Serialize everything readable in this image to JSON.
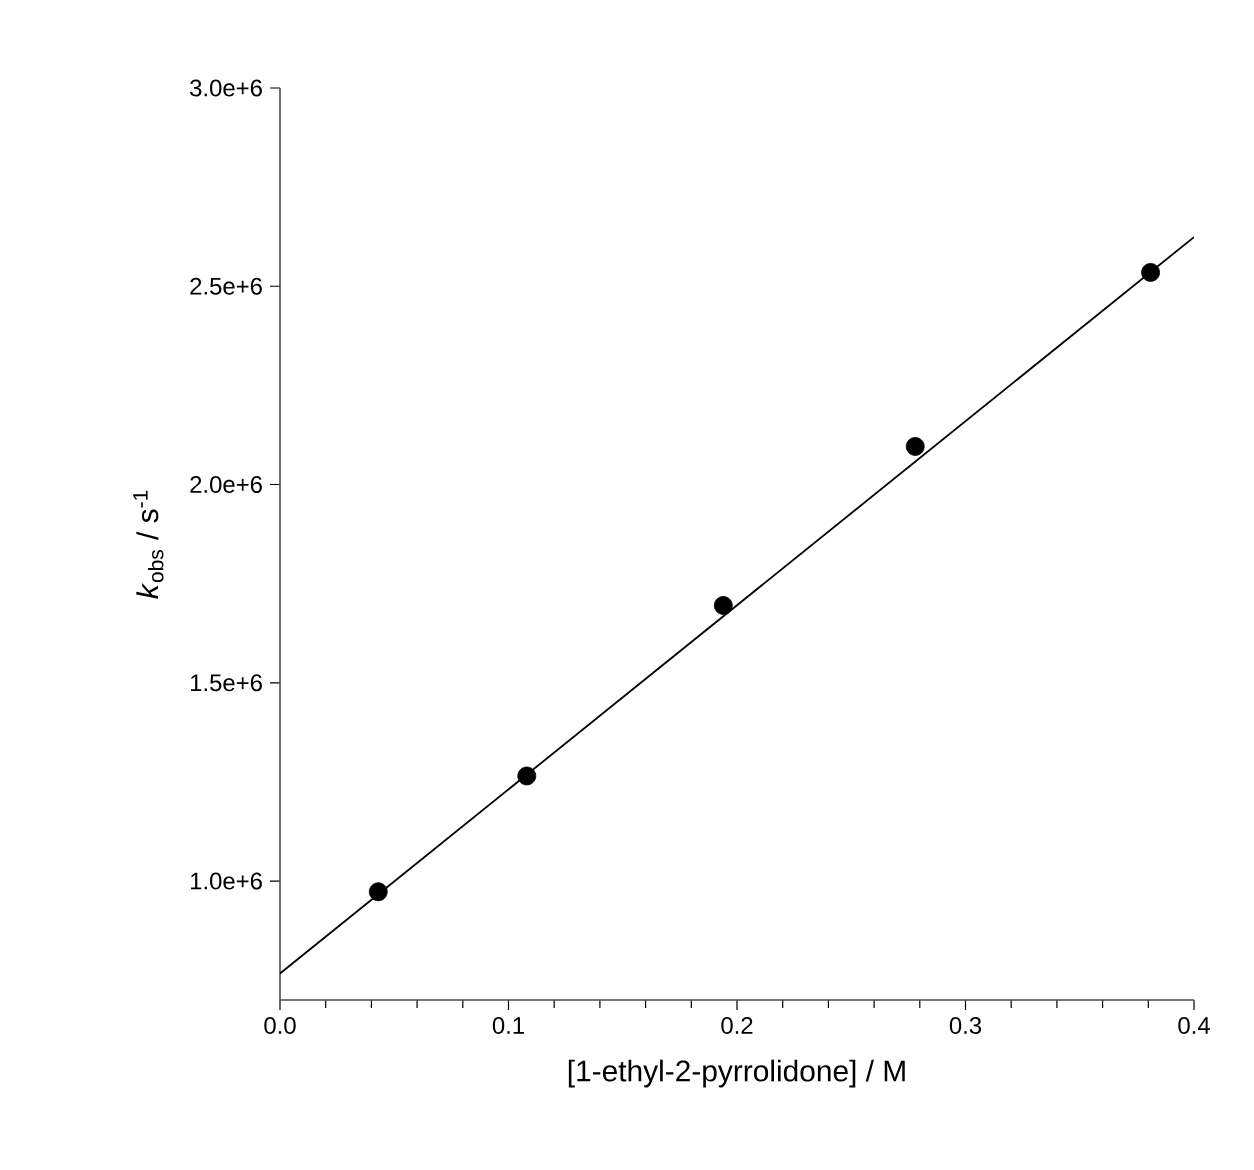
{
  "chart_data": {
    "type": "scatter",
    "xlabel": "[1-ethyl-2-pyrrolidone] / M",
    "ylabel": "*k*$_{obs}$ / s$^{-1}$",
    "xlim": [
      0,
      0.4
    ],
    "ylim": [
      700000,
      3000000
    ],
    "xticks": [
      {
        "value": 0,
        "label": "0.0"
      },
      {
        "value": 0.1,
        "label": "0.1"
      },
      {
        "value": 0.2,
        "label": "0.2"
      },
      {
        "value": 0.3,
        "label": "0.3"
      },
      {
        "value": 0.4,
        "label": "0.4"
      }
    ],
    "yticks": [
      {
        "value": 1000000,
        "label": "1.0e+6"
      },
      {
        "value": 1500000,
        "label": "1.5e+6"
      },
      {
        "value": 2000000,
        "label": "2.0e+6"
      },
      {
        "value": 2500000,
        "label": "2.5e+6"
      },
      {
        "value": 3000000,
        "label": "3.0e+6"
      }
    ],
    "grid": false,
    "series": [
      {
        "marker": "circle",
        "color": "#000000",
        "x": [
          0.043,
          0.108,
          0.194,
          0.278,
          0.381
        ],
        "values": [
          973000,
          1265000,
          1695000,
          2096000,
          2535000
        ]
      },
      {
        "type": "line",
        "marker": "none",
        "color": "#000000",
        "x": [
          0,
          0.4
        ],
        "values": [
          767000,
          2624000
        ]
      }
    ]
  }
}
